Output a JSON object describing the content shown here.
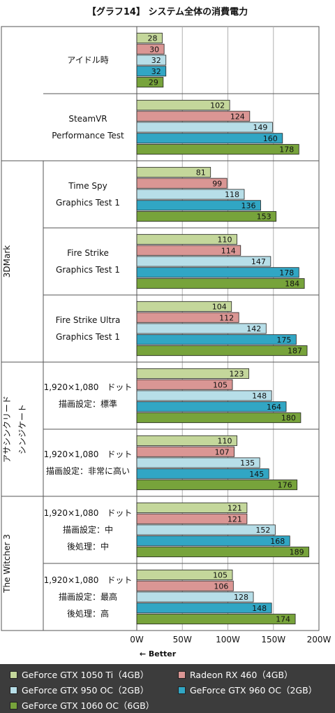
{
  "chart_data": {
    "type": "bar",
    "orientation": "horizontal",
    "title": "【グラフ14】 システム全体の消費電力",
    "x_ticks": [
      "0W",
      "50W",
      "100W",
      "150W",
      "200W"
    ],
    "xlim": [
      0,
      200
    ],
    "note": "← Better",
    "series": [
      {
        "name": "GeForce GTX 1050 Ti（4GB）",
        "color": "#c4d79b"
      },
      {
        "name": "Radeon RX 460（4GB）",
        "color": "#da9694"
      },
      {
        "name": "GeForce GTX 950 OC（2GB）",
        "color": "#b7dee8"
      },
      {
        "name": "GeForce GTX 960 OC（2GB）",
        "color": "#31a6c4"
      },
      {
        "name": "GeForce GTX 1060 OC（6GB）",
        "color": "#77a33b"
      }
    ],
    "groups": [
      {
        "label": "",
        "categories": [
          {
            "lines": [
              "アイドル時"
            ],
            "values": [
              28,
              30,
              32,
              32,
              29
            ]
          },
          {
            "lines": [
              "SteamVR",
              "Performance Test"
            ],
            "values": [
              102,
              124,
              149,
              160,
              178
            ]
          }
        ]
      },
      {
        "label": "3DMark",
        "categories": [
          {
            "lines": [
              "Time Spy",
              "Graphics Test 1"
            ],
            "values": [
              81,
              99,
              118,
              136,
              153
            ]
          },
          {
            "lines": [
              "Fire Strike",
              "Graphics Test 1"
            ],
            "values": [
              110,
              114,
              147,
              178,
              184
            ]
          },
          {
            "lines": [
              "Fire Strike Ultra",
              "Graphics Test 1"
            ],
            "values": [
              104,
              112,
              142,
              175,
              187
            ]
          }
        ]
      },
      {
        "label": "アサシンクリード シンジケート",
        "label_lines": [
          "アサシンクリード",
          "シンジケート"
        ],
        "categories": [
          {
            "lines": [
              "1,920×1,080　ドット",
              "描画設定：標準"
            ],
            "values": [
              123,
              105,
              148,
              164,
              180
            ]
          },
          {
            "lines": [
              "1,920×1,080　ドット",
              "描画設定：非常に高い"
            ],
            "values": [
              110,
              107,
              135,
              145,
              176
            ]
          }
        ]
      },
      {
        "label": "The Witcher 3",
        "categories": [
          {
            "lines": [
              "1,920×1,080　ドット",
              "描画設定：中",
              "後処理：中"
            ],
            "values": [
              121,
              121,
              152,
              168,
              189
            ]
          },
          {
            "lines": [
              "1,920×1,080　ドット",
              "描画設定：最高",
              "後処理：高"
            ],
            "values": [
              105,
              106,
              128,
              148,
              174
            ]
          }
        ]
      }
    ],
    "grid": true,
    "legend": "bottom"
  }
}
